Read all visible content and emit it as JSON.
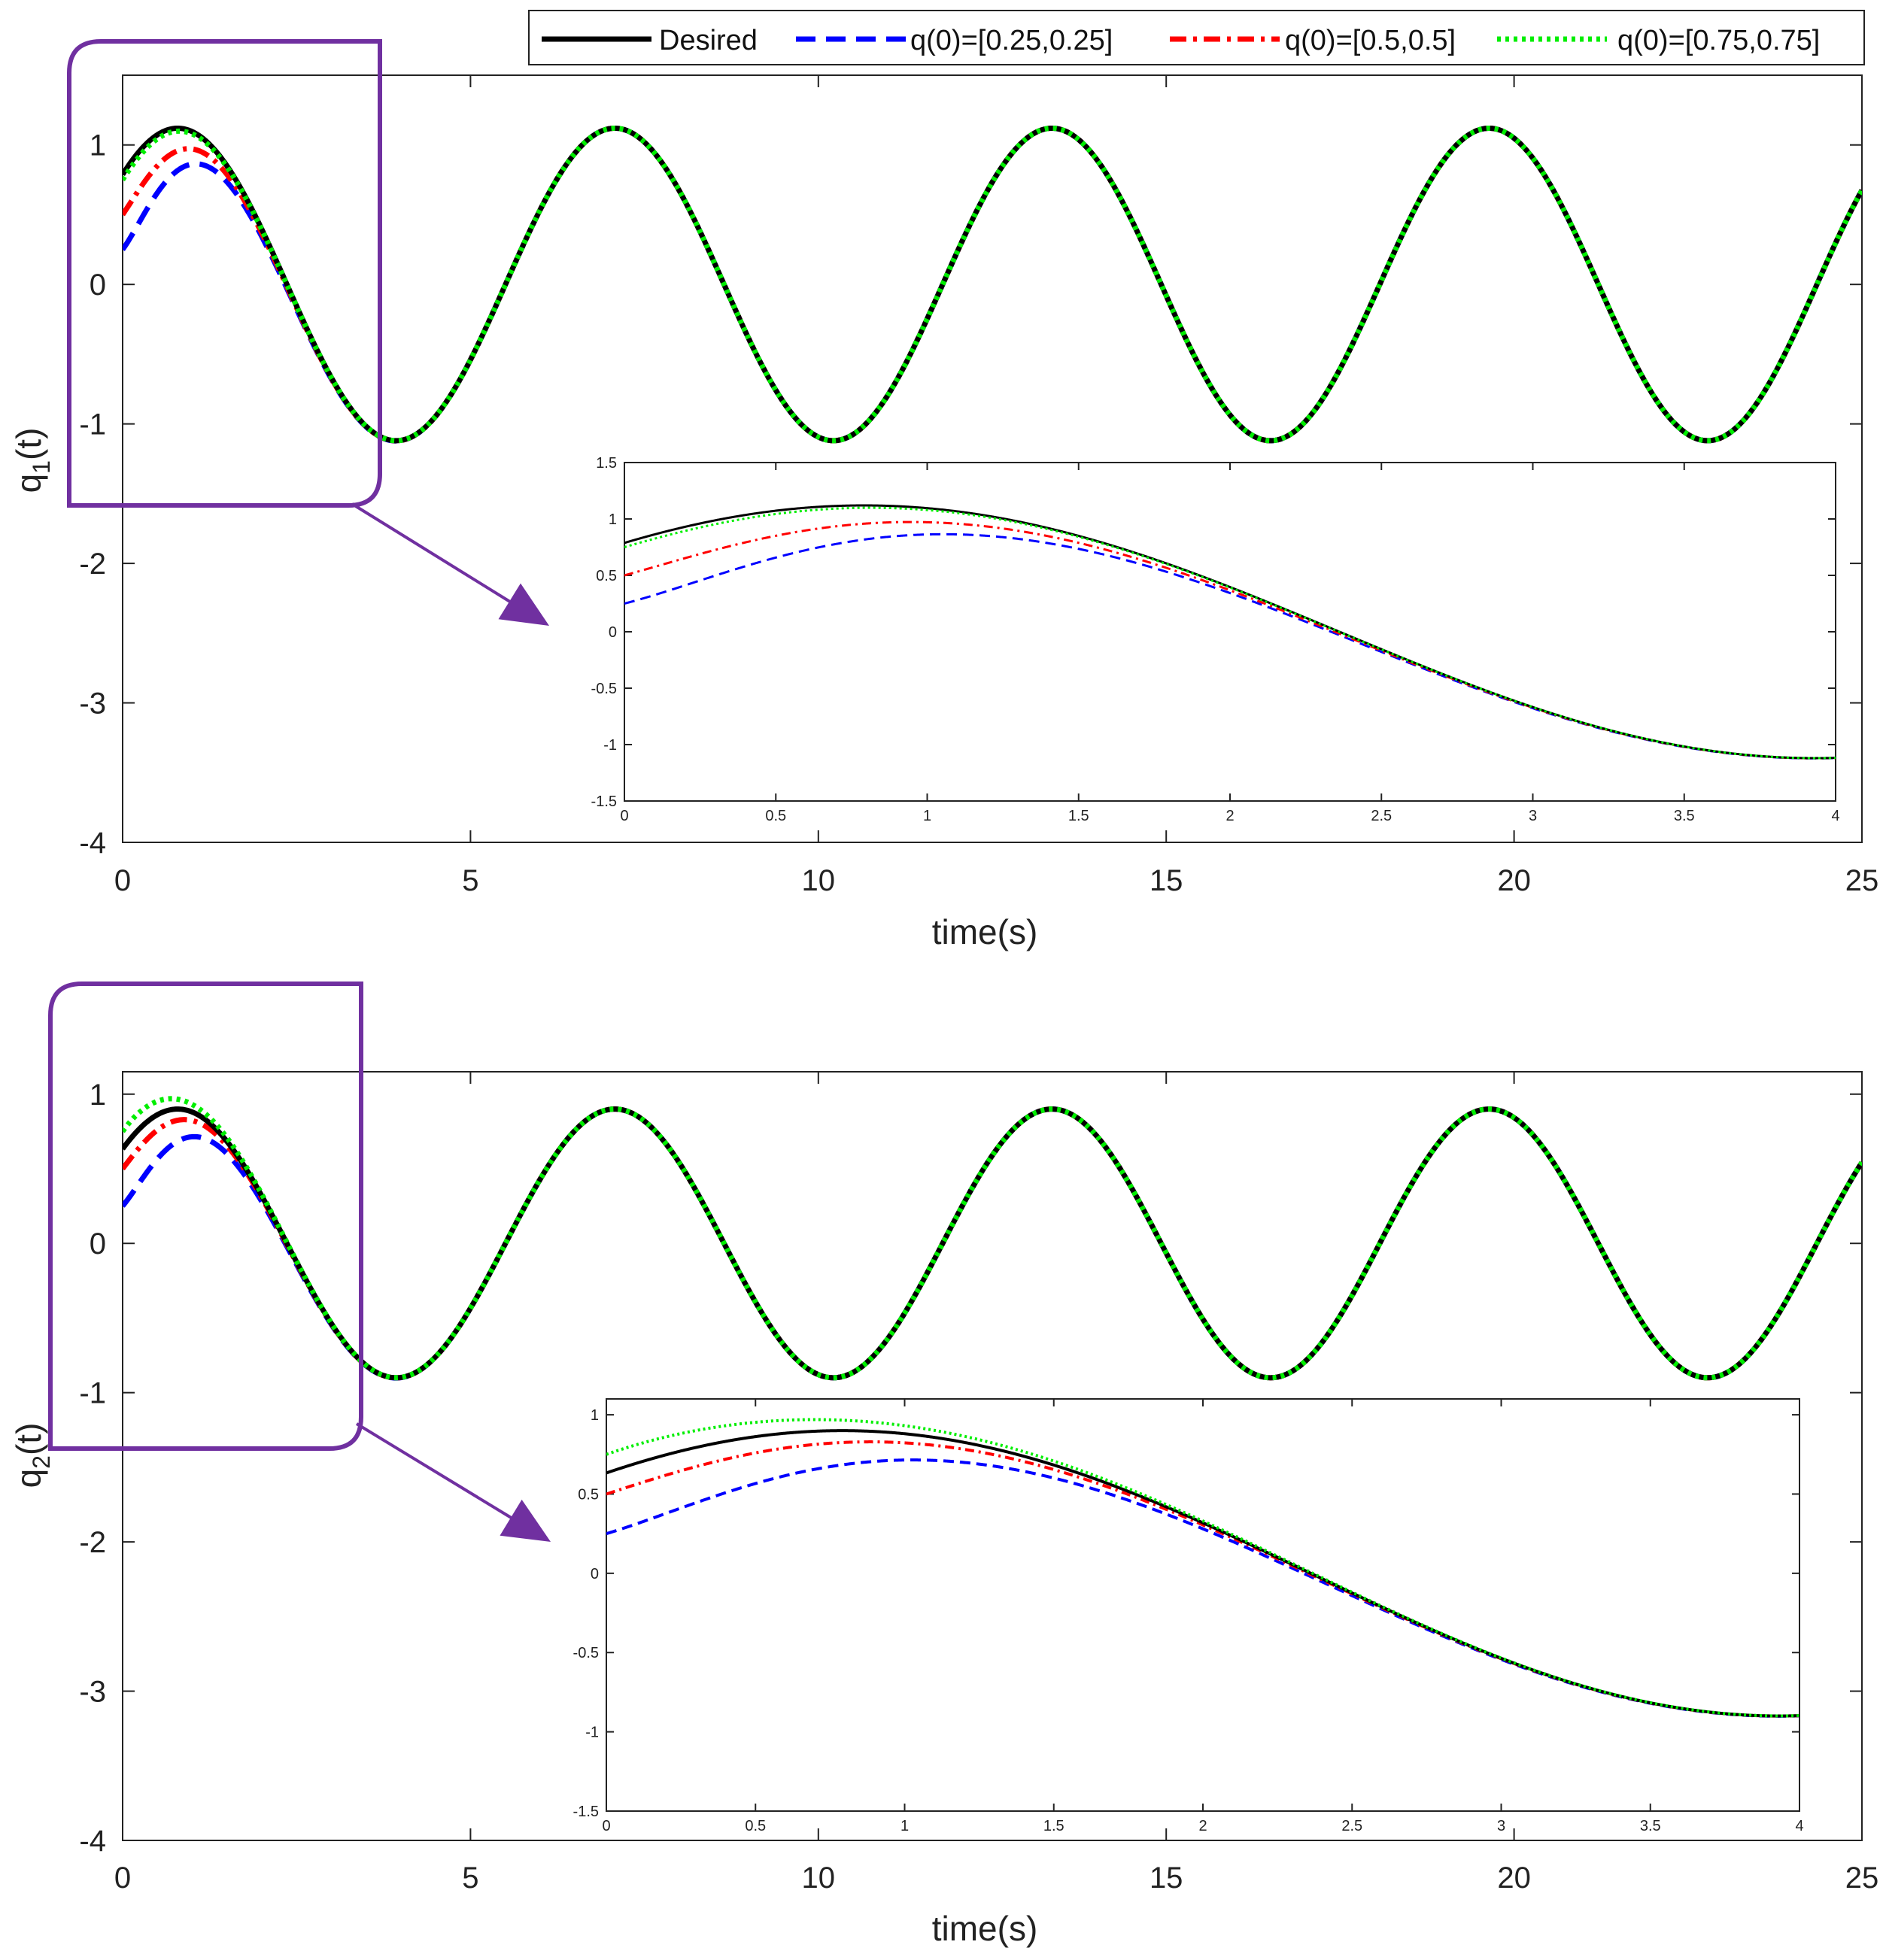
{
  "legend": {
    "entries": [
      {
        "name": "Desired",
        "color": "#000000",
        "dash": "solid"
      },
      {
        "name": "q(0)=[0.25,0.25]",
        "color": "#0000ff",
        "dash": "dashed"
      },
      {
        "name": "q(0)=[0.5,0.5]",
        "color": "#ff0000",
        "dash": "dashdot"
      },
      {
        "name": "q(0)=[0.75,0.75]",
        "color": "#00ee00",
        "dash": "dotted"
      }
    ]
  },
  "highlight_color": "#7030a0",
  "chart_data": [
    {
      "type": "line",
      "id": "q1",
      "ylabel_main": "q",
      "ylabel_sub": "1",
      "ylabel_tail": "(t)",
      "xlabel": "time(s)",
      "xlim": [
        0,
        25
      ],
      "ylim": [
        -4,
        1.5
      ],
      "xticks": [
        0,
        5,
        10,
        15,
        20,
        25
      ],
      "yticks": [
        -4,
        -3,
        -2,
        -1,
        0,
        1
      ],
      "desired": {
        "amplitude": 1.12,
        "omega": 1.0,
        "phase": 0.78
      },
      "series": [
        {
          "name": "Desired",
          "q0": null
        },
        {
          "name": "q(0)=[0.25,0.25]",
          "q0": 0.25
        },
        {
          "name": "q(0)=[0.5,0.5]",
          "q0": 0.5
        },
        {
          "name": "q(0)=[0.75,0.75]",
          "q0": 0.75
        }
      ],
      "convergence_rate": 1.6,
      "inset": {
        "xlim": [
          0,
          4
        ],
        "ylim": [
          -1.5,
          1.5
        ],
        "xticks": [
          "0",
          "0.5",
          "1",
          "1.5",
          "2",
          "2.5",
          "3",
          "3.5",
          "4"
        ],
        "yticks": [
          "-1.5",
          "-1",
          "-0.5",
          "0",
          "0.5",
          "1",
          "1.5"
        ]
      }
    },
    {
      "type": "line",
      "id": "q2",
      "ylabel_main": "q",
      "ylabel_sub": "2",
      "ylabel_tail": "(t)",
      "xlabel": "time(s)",
      "xlim": [
        0,
        25
      ],
      "ylim": [
        -4,
        1.15
      ],
      "xticks": [
        0,
        5,
        10,
        15,
        20,
        25
      ],
      "yticks": [
        -4,
        -3,
        -2,
        -1,
        0,
        1
      ],
      "desired": {
        "amplitude": 0.9,
        "omega": 1.0,
        "phase": 0.78
      },
      "series": [
        {
          "name": "Desired",
          "q0": null
        },
        {
          "name": "q(0)=[0.25,0.25]",
          "q0": 0.25
        },
        {
          "name": "q(0)=[0.5,0.5]",
          "q0": 0.5
        },
        {
          "name": "q(0)=[0.75,0.75]",
          "q0": 0.75
        }
      ],
      "convergence_rate": 1.6,
      "inset": {
        "xlim": [
          0,
          4
        ],
        "ylim": [
          -1.5,
          1.1
        ],
        "xticks": [
          "0",
          "0.5",
          "1",
          "1.5",
          "2",
          "2.5",
          "3",
          "3.5",
          "4"
        ],
        "yticks": [
          "-1.5",
          "-1",
          "-0.5",
          "0",
          "0.5",
          "1"
        ]
      }
    }
  ]
}
